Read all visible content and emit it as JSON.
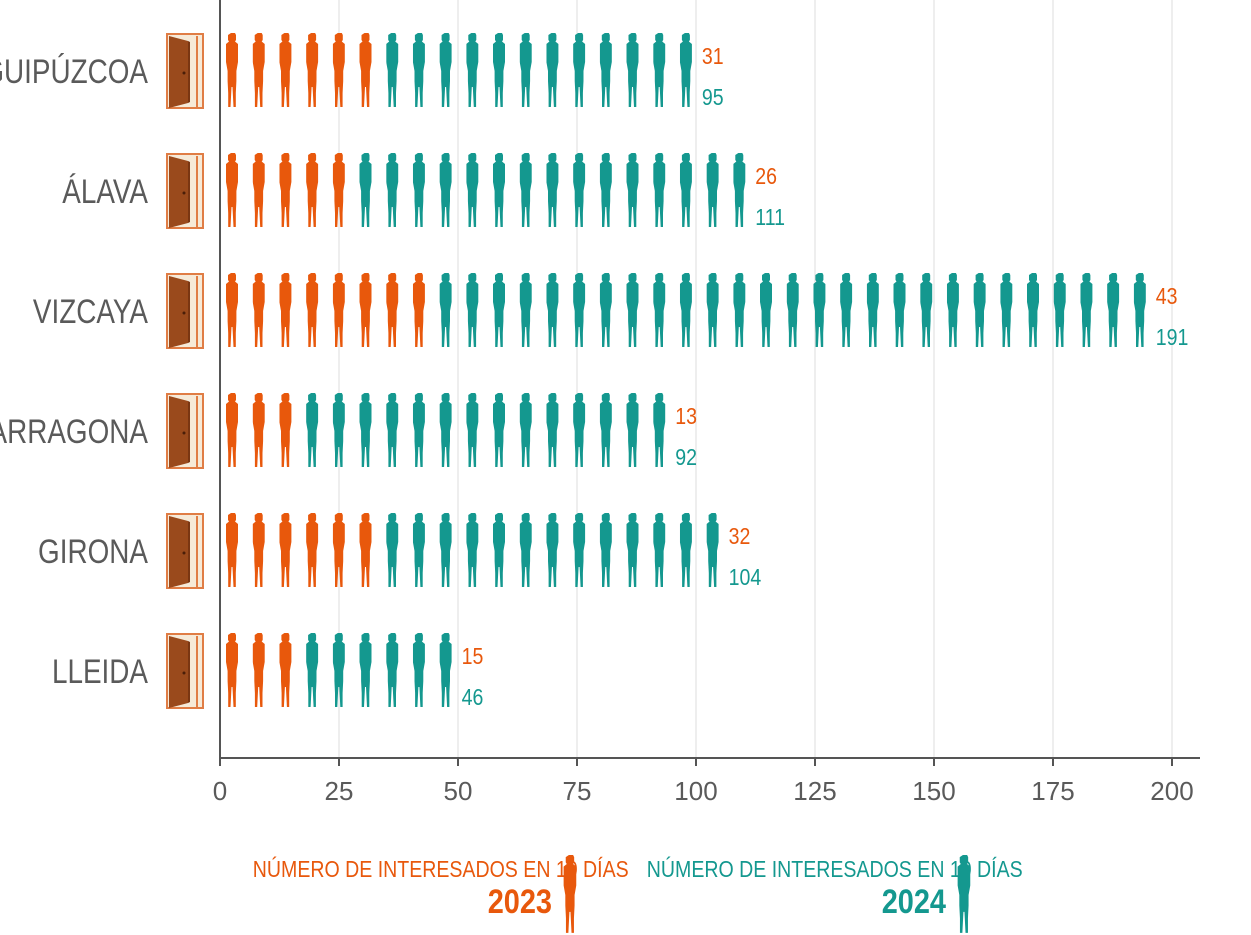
{
  "chart_data": {
    "type": "bar",
    "categories": [
      "GUIPÚZCOA",
      "ÁLAVA",
      "VIZCAYA",
      "TARRAGONA",
      "GIRONA",
      "LLEIDA"
    ],
    "series": [
      {
        "name": "2023",
        "values": [
          31,
          26,
          43,
          13,
          32,
          15
        ],
        "color": "#e8580c"
      },
      {
        "name": "2024",
        "values": [
          95,
          111,
          191,
          92,
          104,
          46
        ],
        "color": "#14988f"
      }
    ],
    "xlim": [
      0,
      200
    ],
    "xticks": [
      "0",
      "25",
      "50",
      "75",
      "100",
      "125",
      "150",
      "175",
      "200"
    ],
    "grid": "vertical",
    "icon": "person-silhouette-icon",
    "category_icon": "door-icon",
    "legend_placement": "bottom"
  },
  "legend": [
    {
      "label": "NÚMERO DE INTERESADOS EN 10 DÍAS",
      "year": "2023",
      "color": "#e8580c"
    },
    {
      "label": "NÚMERO DE INTERESADOS EN 10 DÍAS",
      "year": "2024",
      "color": "#14988f"
    }
  ]
}
